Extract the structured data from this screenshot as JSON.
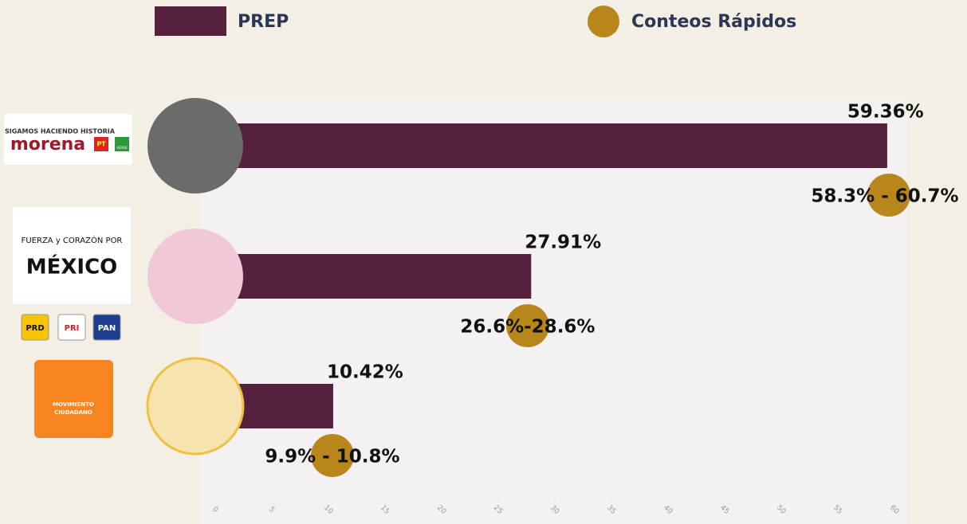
{
  "chart_data": {
    "type": "hbar-range",
    "categories": [
      null,
      null,
      null
    ],
    "logo_texts": [
      [
        "SIGAMOS HACIENDO HISTORIA",
        "morena",
        "PT",
        "VERDE"
      ],
      [
        "FUERZA y CORAZÓN POR",
        "MÉXICO",
        "PRD",
        "PRI",
        "PAN"
      ],
      [
        "MOVIMIENTO",
        "CIUDADANO"
      ]
    ],
    "series": [
      {
        "name": "PREP",
        "color": "#55213f",
        "values": [
          59.36,
          27.91,
          10.42
        ],
        "value_labels": [
          "59.36%",
          "27.91%",
          "10.42%"
        ]
      },
      {
        "name": "Conteos Rápidos",
        "color": "#b8861b",
        "low": [
          58.3,
          26.6,
          9.9
        ],
        "high": [
          60.7,
          28.6,
          10.8
        ],
        "value_labels": [
          "58.3% - 60.7%",
          "26.6%-28.6%",
          "9.9% - 10.8%"
        ]
      }
    ],
    "xlim": [
      0,
      60
    ],
    "xticks": [
      0,
      5,
      10,
      15,
      20,
      25,
      30,
      35,
      40,
      45,
      50,
      55,
      60
    ]
  }
}
